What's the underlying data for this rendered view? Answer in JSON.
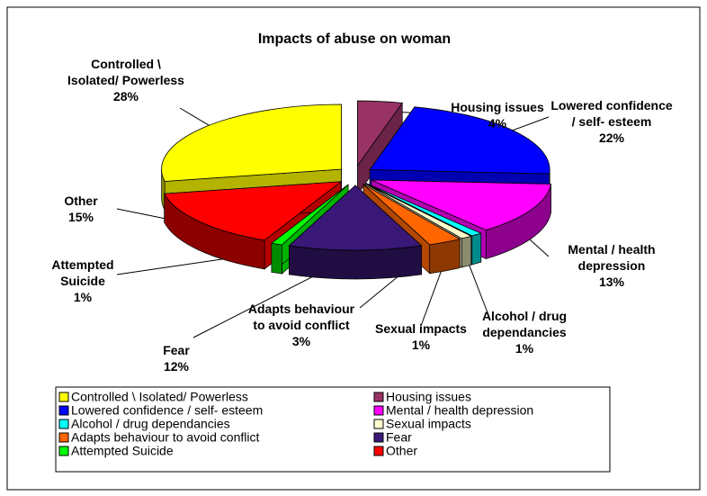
{
  "chart_data": {
    "type": "pie3d",
    "title": "Impacts of abuse on woman",
    "categories": [
      "Controlled \\ Isolated/ Powerless",
      "Housing issues",
      "Lowered confidence / self- esteem",
      "Mental / health depression",
      "Alcohol / drug dependancies",
      "Sexual impacts",
      "Adapts behaviour to avoid conflict",
      "Fear",
      "Attempted Suicide",
      "Other"
    ],
    "values": [
      28,
      4,
      22,
      13,
      1,
      1,
      3,
      12,
      1,
      15
    ],
    "value_labels": [
      "28%",
      "4%",
      "22%",
      "13%",
      "1%",
      "1%",
      "3%",
      "12%",
      "1%",
      "15%"
    ],
    "colors": [
      "#FFFF00",
      "#993366",
      "#0000FF",
      "#FF00FF",
      "#00FFFF",
      "#FFFFCC",
      "#FF6600",
      "#3A1878",
      "#00FF00",
      "#FF0000"
    ],
    "legend": "bottom"
  }
}
